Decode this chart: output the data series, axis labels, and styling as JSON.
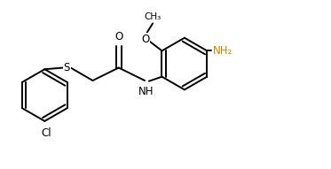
{
  "bg_color": "#ffffff",
  "bond_color": "#000000",
  "nh2_color": "#b8860b",
  "line_width": 1.4,
  "font_size": 8.5,
  "figsize": [
    3.73,
    1.91
  ],
  "dpi": 100,
  "xlim": [
    0,
    10.5
  ],
  "ylim": [
    0,
    5.5
  ]
}
